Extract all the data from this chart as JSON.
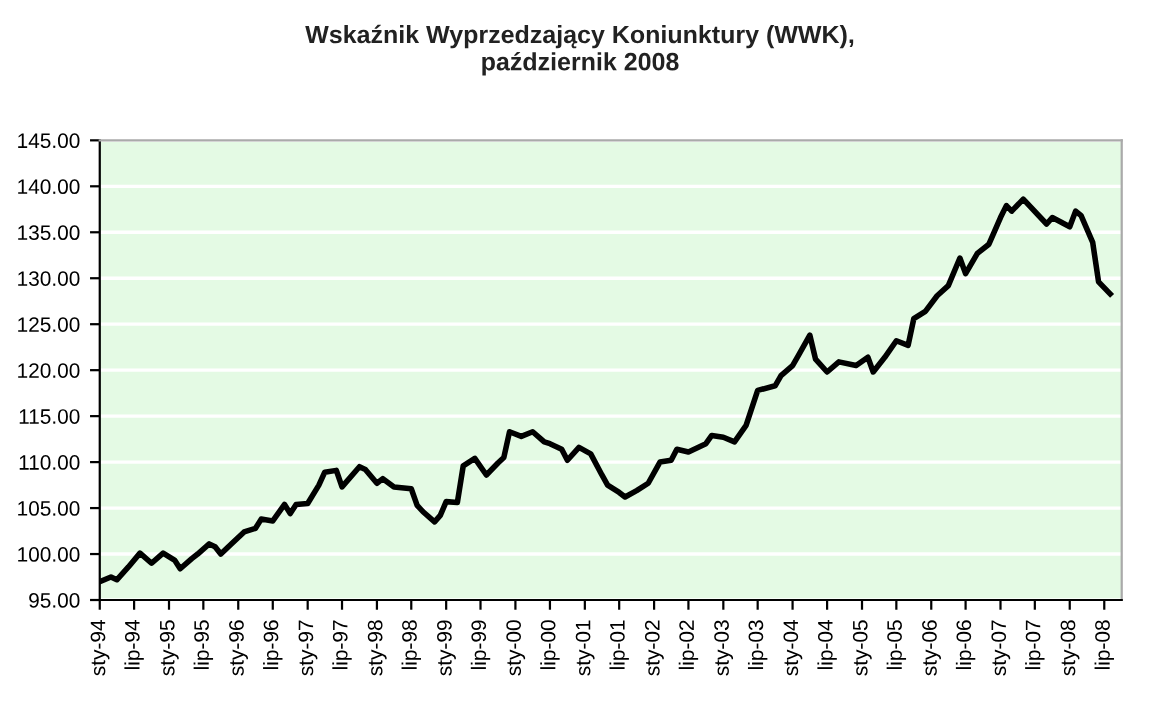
{
  "chart_data": {
    "type": "line",
    "title": "Wskaźnik Wyprzedzający Koniunktury (WWK),\npaździernik 2008",
    "x": [
      "1994-01",
      "1994-03",
      "1994-04",
      "1994-06",
      "1994-08",
      "1994-10",
      "1994-12",
      "1995-02",
      "1995-03",
      "1995-05",
      "1995-06",
      "1995-08",
      "1995-09",
      "1995-10",
      "1995-12",
      "1996-02",
      "1996-04",
      "1996-05",
      "1996-07",
      "1996-09",
      "1996-10",
      "1996-11",
      "1997-01",
      "1997-03",
      "1997-04",
      "1997-06",
      "1997-07",
      "1997-10",
      "1997-11",
      "1998-01",
      "1998-02",
      "1998-04",
      "1998-07",
      "1998-08",
      "1998-09",
      "1998-11",
      "1998-12",
      "1999-01",
      "1999-03",
      "1999-04",
      "1999-06",
      "1999-08",
      "1999-10",
      "1999-11",
      "1999-12",
      "2000-02",
      "2000-04",
      "2000-06",
      "2000-07",
      "2000-09",
      "2000-10",
      "2000-12",
      "2001-02",
      "2001-04",
      "2001-05",
      "2001-07",
      "2001-08",
      "2001-10",
      "2001-12",
      "2002-02",
      "2002-04",
      "2002-05",
      "2002-07",
      "2002-10",
      "2002-11",
      "2003-01",
      "2003-03",
      "2003-05",
      "2003-07",
      "2003-10",
      "2003-11",
      "2004-01",
      "2004-02",
      "2004-04",
      "2004-05",
      "2004-07",
      "2004-09",
      "2004-12",
      "2005-02",
      "2005-03",
      "2005-05",
      "2005-07",
      "2005-09",
      "2005-10",
      "2005-12",
      "2006-02",
      "2006-04",
      "2006-06",
      "2006-07",
      "2006-09",
      "2006-11",
      "2007-01",
      "2007-02",
      "2007-03",
      "2007-05",
      "2007-09",
      "2007-10",
      "2008-01",
      "2008-02",
      "2008-03",
      "2008-05",
      "2008-06",
      "2008-08"
    ],
    "series": [
      {
        "color": "#000000",
        "values": [
          97.0,
          97.5,
          97.2,
          98.6,
          100.1,
          99.0,
          100.1,
          99.3,
          98.4,
          99.5,
          100.0,
          101.1,
          100.8,
          100.0,
          101.2,
          102.4,
          102.8,
          103.8,
          103.6,
          105.4,
          104.4,
          105.4,
          105.5,
          107.5,
          108.9,
          109.1,
          107.3,
          109.5,
          109.2,
          107.7,
          108.2,
          107.3,
          107.1,
          105.3,
          104.6,
          103.5,
          104.2,
          105.7,
          105.6,
          109.6,
          110.4,
          108.6,
          109.9,
          110.5,
          113.3,
          112.8,
          113.3,
          112.2,
          112.0,
          111.4,
          110.2,
          111.6,
          110.9,
          108.6,
          107.5,
          106.7,
          106.2,
          106.9,
          107.7,
          110.0,
          110.2,
          111.4,
          111.1,
          112.0,
          112.9,
          112.7,
          112.2,
          114.0,
          117.8,
          118.3,
          119.4,
          120.5,
          121.6,
          123.8,
          121.2,
          119.8,
          120.9,
          120.5,
          121.4,
          119.8,
          121.4,
          123.2,
          122.7,
          125.6,
          126.4,
          128.1,
          129.2,
          132.2,
          130.5,
          132.7,
          133.7,
          136.6,
          137.9,
          137.3,
          138.6,
          135.9,
          136.6,
          135.6,
          137.3,
          136.8,
          133.9,
          129.6,
          128.3
        ]
      }
    ],
    "xlim": [
      "1994-01",
      "2008-10"
    ],
    "xticks": [
      {
        "value": "1994-01",
        "label": "sty-94"
      },
      {
        "value": "1994-07",
        "label": "lip-94"
      },
      {
        "value": "1995-01",
        "label": "sty-95"
      },
      {
        "value": "1995-07",
        "label": "lip-95"
      },
      {
        "value": "1996-01",
        "label": "sty-96"
      },
      {
        "value": "1996-07",
        "label": "lip-96"
      },
      {
        "value": "1997-01",
        "label": "sty-97"
      },
      {
        "value": "1997-07",
        "label": "lip-97"
      },
      {
        "value": "1998-01",
        "label": "sty-98"
      },
      {
        "value": "1998-07",
        "label": "lip-98"
      },
      {
        "value": "1999-01",
        "label": "sty-99"
      },
      {
        "value": "1999-07",
        "label": "lip-99"
      },
      {
        "value": "2000-01",
        "label": "sty-00"
      },
      {
        "value": "2000-07",
        "label": "lip-00"
      },
      {
        "value": "2001-01",
        "label": "sty-01"
      },
      {
        "value": "2001-07",
        "label": "lip-01"
      },
      {
        "value": "2002-01",
        "label": "sty-02"
      },
      {
        "value": "2002-07",
        "label": "lip-02"
      },
      {
        "value": "2003-01",
        "label": "sty-03"
      },
      {
        "value": "2003-07",
        "label": "lip-03"
      },
      {
        "value": "2004-01",
        "label": "sty-04"
      },
      {
        "value": "2004-07",
        "label": "lip-04"
      },
      {
        "value": "2005-01",
        "label": "sty-05"
      },
      {
        "value": "2005-07",
        "label": "lip-05"
      },
      {
        "value": "2006-01",
        "label": "sty-06"
      },
      {
        "value": "2006-07",
        "label": "lip-06"
      },
      {
        "value": "2007-01",
        "label": "sty-07"
      },
      {
        "value": "2007-07",
        "label": "lip-07"
      },
      {
        "value": "2008-01",
        "label": "sty-08"
      },
      {
        "value": "2008-07",
        "label": "lip-08"
      }
    ],
    "ylim": [
      95,
      145
    ],
    "yticks": [
      {
        "value": 95,
        "label": "95.00"
      },
      {
        "value": 100,
        "label": "100.00"
      },
      {
        "value": 105,
        "label": "105.00"
      },
      {
        "value": 110,
        "label": "110.00"
      },
      {
        "value": 115,
        "label": "115.00"
      },
      {
        "value": 120,
        "label": "120.00"
      },
      {
        "value": 125,
        "label": "125.00"
      },
      {
        "value": 130,
        "label": "130.00"
      },
      {
        "value": 135,
        "label": "135.00"
      },
      {
        "value": 140,
        "label": "140.00"
      },
      {
        "value": 145,
        "label": "145.00"
      }
    ],
    "grid": "y",
    "marker": "none",
    "line_style": "solid"
  }
}
